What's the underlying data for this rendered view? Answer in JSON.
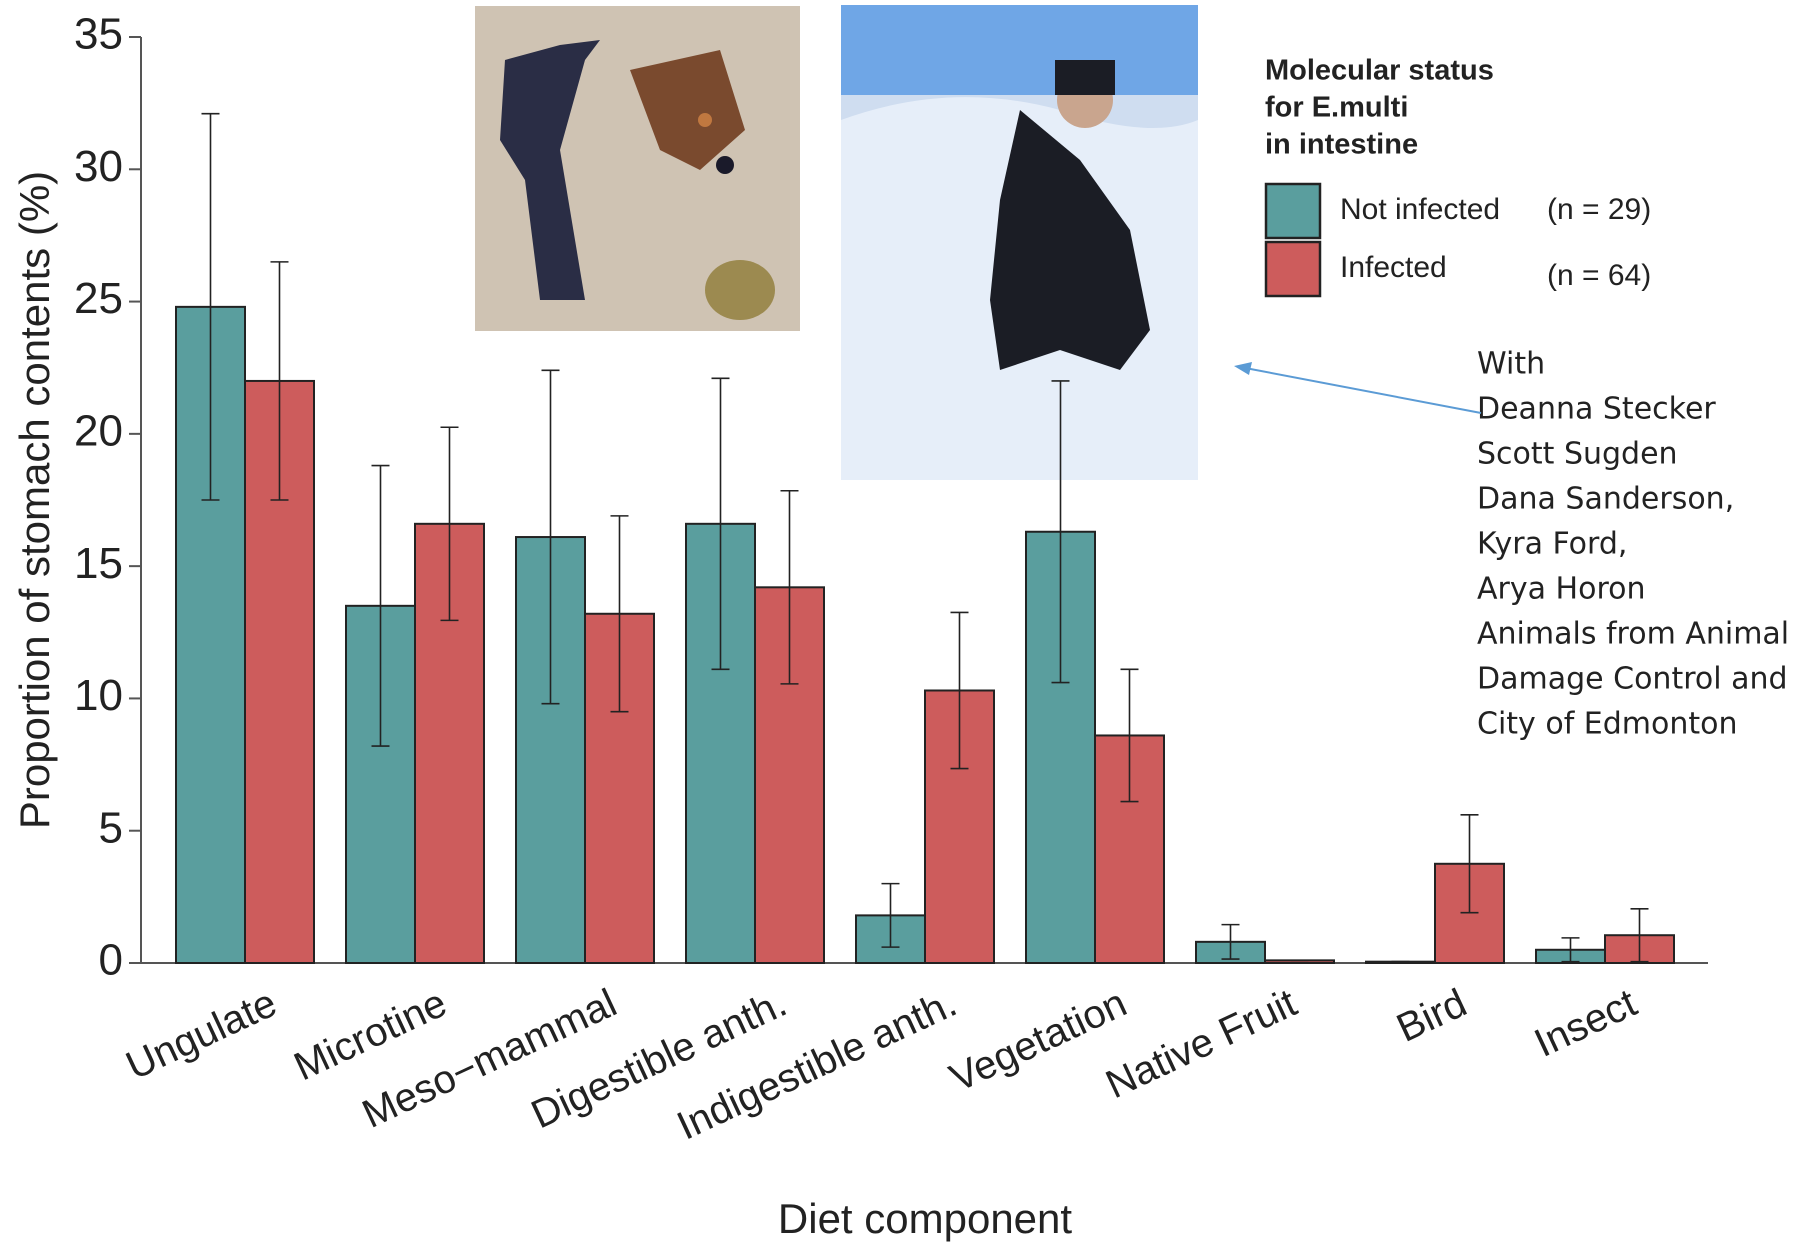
{
  "chart_data": {
    "type": "bar",
    "y_label": "Proportion of stomach contents (%)",
    "x_label": "Diet component",
    "categories": [
      "Ungulate",
      "Microtine",
      "Meso−mammal",
      "Digestible anth.",
      "Indigestible anth.",
      "Vegetation",
      "Native Fruit",
      "Bird",
      "Insect"
    ],
    "series": [
      {
        "name": "Not infected",
        "n_label": "(n = 29)",
        "color": "#5a9e9e",
        "values": [
          24.8,
          13.5,
          16.1,
          16.6,
          1.8,
          16.3,
          0.8,
          0.05,
          0.5
        ],
        "errors": [
          7.3,
          5.3,
          6.3,
          5.5,
          1.2,
          5.7,
          0.65,
          0,
          0.45
        ]
      },
      {
        "name": "Infected",
        "n_label": "(n = 64)",
        "color": "#cd5c5c",
        "values": [
          22.0,
          16.6,
          13.2,
          14.2,
          10.3,
          8.6,
          0.1,
          3.75,
          1.05
        ],
        "errors": [
          4.5,
          3.65,
          3.7,
          3.65,
          2.95,
          2.5,
          0,
          1.85,
          1.0
        ]
      }
    ],
    "legend_title": [
      "Molecular status",
      "for E.multi",
      " in intestine"
    ],
    "ylim": [
      0,
      35
    ],
    "yticks": [
      0,
      5,
      10,
      15,
      20,
      25,
      30,
      35
    ],
    "annotation": [
      "With",
      "Deanna Stecker",
      "Scott Sugden",
      "Dana Sanderson,",
      "Kyra Ford,",
      "Arya Horon",
      "Animals from Animal",
      "Damage Control and",
      "City of Edmonton"
    ]
  }
}
